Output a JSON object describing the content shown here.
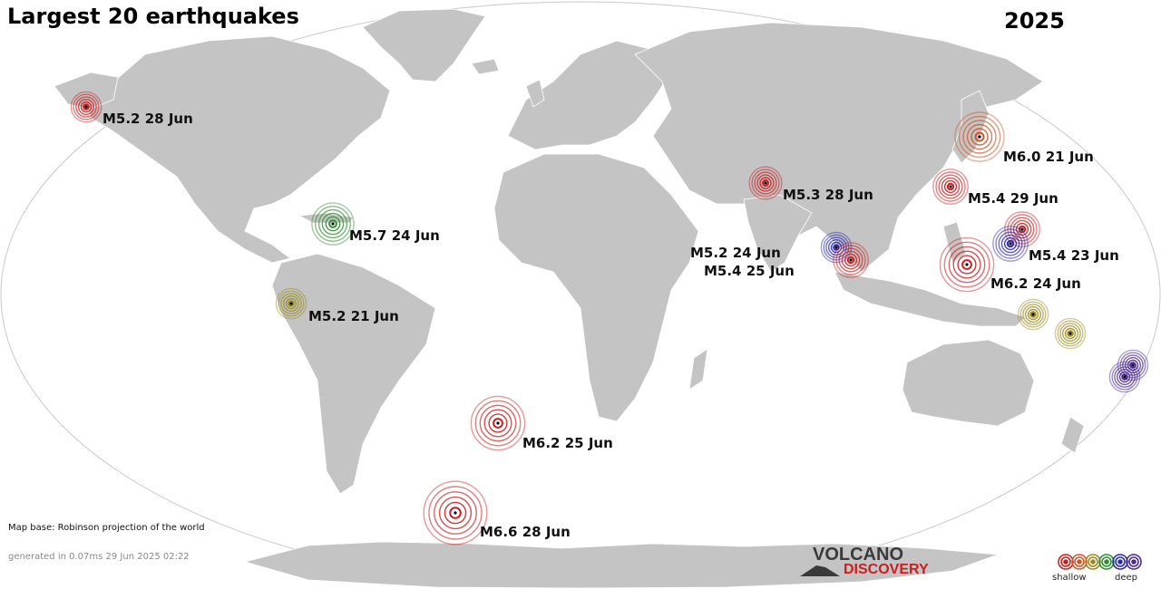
{
  "title": "Largest 20 earthquakes",
  "year": "2025",
  "map_base_note": "Map base: Robinson projection of the world",
  "generated_note": "generated in 0.07ms 29 Jun 2025 02:22",
  "logo": {
    "top": "VOLCANO",
    "bottom": "DISCOVERY"
  },
  "legend": {
    "shallow_label": "shallow",
    "deep_label": "deep",
    "depth_colors": [
      "#cc1e1e",
      "#d0552a",
      "#9a8a1e",
      "#2f8f2f",
      "#2a2ab0",
      "#4a2a90"
    ]
  },
  "labels": [
    {
      "text": "M5.2 28 Jun"
    },
    {
      "text": "M6.0 21 Jun"
    },
    {
      "text": "M5.3 28 Jun"
    },
    {
      "text": "M5.4 29 Jun"
    },
    {
      "text": "M5.7 24 Jun"
    },
    {
      "text": "M5.2 24 Jun"
    },
    {
      "text": "M5.4 25 Jun"
    },
    {
      "text": "M5.4 23 Jun"
    },
    {
      "text": "M6.2 24 Jun"
    },
    {
      "text": "M5.2 21 Jun"
    },
    {
      "text": "M6.2 25 Jun"
    },
    {
      "text": "M6.6 28 Jun"
    }
  ],
  "quakes": [
    {
      "color": "#cc1e1e",
      "mag": 5.2
    },
    {
      "color": "#d0552a",
      "mag": 6.0
    },
    {
      "color": "#cc1e1e",
      "mag": 5.3
    },
    {
      "color": "#cc1e1e",
      "mag": 5.4
    },
    {
      "color": "#2f8f2f",
      "mag": 5.7
    },
    {
      "color": "#2a2ab0",
      "mag": 5.2
    },
    {
      "color": "#cc1e1e",
      "mag": 5.4
    },
    {
      "color": "#cc1e1e",
      "mag": 5.4
    },
    {
      "color": "#2a2ab0",
      "mag": 5.4
    },
    {
      "color": "#cc1e1e",
      "mag": 6.2
    },
    {
      "color": "#9a8a1e",
      "mag": 5.2
    },
    {
      "color": "#9a8a1e",
      "mag": 5.2
    },
    {
      "color": "#9a8a1e",
      "mag": 5.2
    },
    {
      "color": "#4a2a90",
      "mag": 5.2
    },
    {
      "color": "#4a2a90",
      "mag": 5.2
    },
    {
      "color": "#cc1e1e",
      "mag": 6.2
    },
    {
      "color": "#cc1e1e",
      "mag": 6.6
    }
  ]
}
